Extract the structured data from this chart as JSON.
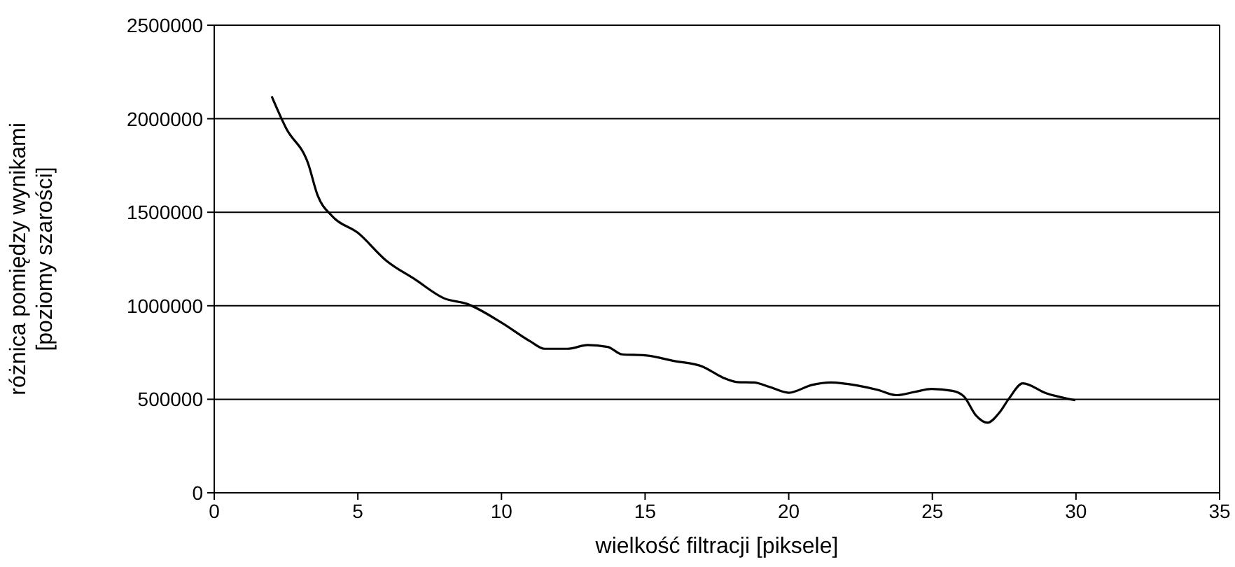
{
  "chart_data": {
    "type": "line",
    "xlabel": "wielkość filtracji [piksele]",
    "ylabel": "różnica pomiędzy wynikami\n[poziomy szarości]",
    "xlim": [
      0,
      35
    ],
    "xticks": [
      0,
      5,
      10,
      15,
      20,
      25,
      30,
      35
    ],
    "ylim": [
      0,
      2500000
    ],
    "yticks": [
      0,
      500000,
      1000000,
      1500000,
      2000000,
      2500000
    ],
    "grid": "y",
    "series": [
      {
        "color": "#000000",
        "x": [
          2,
          2.5,
          3.27,
          3.6,
          4.1,
          5,
          6,
          7,
          8,
          8.8,
          10,
          11,
          11.5,
          12.3,
          13,
          13.7,
          14.2,
          15,
          16,
          17,
          17.72,
          18.21,
          18.78,
          19.35,
          20,
          20.81,
          21.47,
          22.44,
          23.1,
          23.75,
          24.4,
          24.97,
          25.7,
          26.1,
          26.51,
          26.92,
          27.33,
          27.66,
          28.15,
          28.96,
          29.98
        ],
        "values": [
          2120000,
          1950000,
          1760000,
          1590000,
          1480000,
          1390000,
          1240000,
          1140000,
          1040000,
          1010000,
          910000,
          810000,
          770000,
          770000,
          790000,
          780000,
          740000,
          735000,
          705000,
          675000,
          615000,
          592000,
          590000,
          565000,
          535000,
          577000,
          590000,
          572000,
          550000,
          522000,
          540000,
          555000,
          545000,
          515000,
          415000,
          375000,
          428000,
          502000,
          585000,
          532000,
          495000
        ]
      }
    ]
  }
}
